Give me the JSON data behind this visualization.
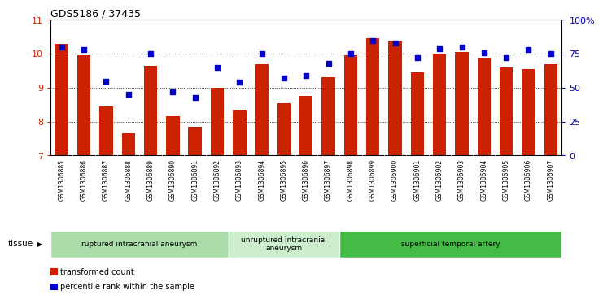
{
  "title": "GDS5186 / 37435",
  "samples": [
    "GSM1306885",
    "GSM1306886",
    "GSM1306887",
    "GSM1306888",
    "GSM1306889",
    "GSM1306890",
    "GSM1306891",
    "GSM1306892",
    "GSM1306893",
    "GSM1306894",
    "GSM1306895",
    "GSM1306896",
    "GSM1306897",
    "GSM1306898",
    "GSM1306899",
    "GSM1306900",
    "GSM1306901",
    "GSM1306902",
    "GSM1306903",
    "GSM1306904",
    "GSM1306905",
    "GSM1306906",
    "GSM1306907"
  ],
  "bar_values": [
    10.3,
    9.95,
    8.45,
    7.65,
    9.65,
    8.15,
    7.85,
    9.0,
    8.35,
    9.7,
    8.55,
    8.75,
    9.3,
    9.95,
    10.45,
    10.4,
    9.45,
    10.0,
    10.05,
    9.85,
    9.6,
    9.55,
    9.7
  ],
  "percentile_values": [
    80,
    78,
    55,
    45,
    75,
    47,
    43,
    65,
    54,
    75,
    57,
    59,
    68,
    75,
    85,
    83,
    72,
    79,
    80,
    76,
    72,
    78,
    75
  ],
  "ylim_left": [
    7,
    11
  ],
  "ylim_right": [
    0,
    100
  ],
  "yticks_left": [
    7,
    8,
    9,
    10,
    11
  ],
  "yticks_right": [
    0,
    25,
    50,
    75,
    100
  ],
  "yticklabels_right": [
    "0",
    "25",
    "50",
    "75",
    "100%"
  ],
  "bar_color": "#cc2200",
  "dot_color": "#0000cc",
  "background_color": "#d8d8d8",
  "plot_bg_color": "#ffffff",
  "tissue_groups": [
    {
      "label": "ruptured intracranial aneurysm",
      "start": 0,
      "end": 8,
      "color": "#aaddaa"
    },
    {
      "label": "unruptured intracranial\naneurysm",
      "start": 8,
      "end": 13,
      "color": "#cceecc"
    },
    {
      "label": "superficial temporal artery",
      "start": 13,
      "end": 23,
      "color": "#44bb44"
    }
  ],
  "tissue_label": "tissue",
  "legend_bar_label": "transformed count",
  "legend_dot_label": "percentile rank within the sample"
}
